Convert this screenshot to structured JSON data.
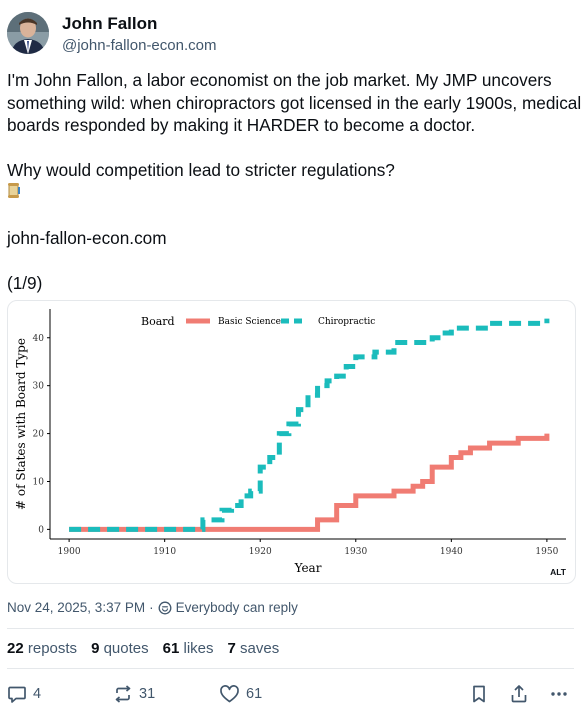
{
  "author": {
    "display_name": "John Fallon",
    "handle": "@john-fallon-econ.com",
    "avatar_icon": "avatar"
  },
  "post": {
    "paragraphs": [
      "I'm John Fallon, a labor economist on the job market. My JMP uncovers something wild: when chiropractors got licensed in the early 1900s, medical boards responded by making it HARDER to become a doctor.",
      "Why would competition lead to stricter regulations?"
    ],
    "thread_emoji": "scroll-icon",
    "link": "john-fallon-econ.com",
    "thread_counter": "(1/9)"
  },
  "image": {
    "alt_badge": "ALT",
    "chart_data": {
      "type": "line",
      "xlabel": "Year",
      "ylabel": "# of States with Board Type",
      "legend_title": "Board",
      "legend_position": "top-left",
      "xlim": [
        1898,
        1952
      ],
      "ylim": [
        -2,
        46
      ],
      "xticks": [
        1900,
        1910,
        1920,
        1930,
        1940,
        1950
      ],
      "yticks": [
        0,
        10,
        20,
        30,
        40
      ],
      "grid": false,
      "series": [
        {
          "name": "Basic Science",
          "color": "#f07c73",
          "style": "solid",
          "x": [
            1900,
            1901,
            1902,
            1903,
            1904,
            1905,
            1906,
            1907,
            1908,
            1909,
            1910,
            1911,
            1912,
            1913,
            1914,
            1915,
            1916,
            1917,
            1918,
            1919,
            1920,
            1921,
            1922,
            1923,
            1924,
            1925,
            1926,
            1927,
            1928,
            1929,
            1930,
            1931,
            1932,
            1933,
            1934,
            1935,
            1936,
            1937,
            1938,
            1939,
            1940,
            1941,
            1942,
            1943,
            1944,
            1945,
            1946,
            1947,
            1948,
            1949,
            1950
          ],
          "values": [
            0,
            0,
            0,
            0,
            0,
            0,
            0,
            0,
            0,
            0,
            0,
            0,
            0,
            0,
            0,
            0,
            0,
            0,
            0,
            0,
            0,
            0,
            0,
            0,
            0,
            0,
            2,
            2,
            5,
            5,
            7,
            7,
            7,
            7,
            8,
            8,
            9,
            10,
            13,
            13,
            15,
            16,
            17,
            17,
            18,
            18,
            18,
            19,
            19,
            19,
            20
          ]
        },
        {
          "name": "Chiropractic",
          "color": "#1bbcbc",
          "style": "dashed",
          "x": [
            1900,
            1901,
            1902,
            1903,
            1904,
            1905,
            1906,
            1907,
            1908,
            1909,
            1910,
            1911,
            1912,
            1913,
            1914,
            1915,
            1916,
            1917,
            1918,
            1919,
            1920,
            1921,
            1922,
            1923,
            1924,
            1925,
            1926,
            1927,
            1928,
            1929,
            1930,
            1931,
            1932,
            1933,
            1934,
            1935,
            1936,
            1937,
            1938,
            1939,
            1940,
            1941,
            1942,
            1943,
            1944,
            1945,
            1946,
            1947,
            1948,
            1949,
            1950
          ],
          "values": [
            0,
            0,
            0,
            0,
            0,
            0,
            0,
            0,
            0,
            0,
            0,
            0,
            0,
            0,
            2,
            2,
            4,
            5,
            7,
            8,
            13,
            15,
            20,
            22,
            25,
            28,
            30,
            31,
            32,
            34,
            36,
            36,
            37,
            37,
            39,
            39,
            39,
            39,
            40,
            41,
            42,
            42,
            42,
            42,
            43,
            43,
            43,
            43,
            43,
            43,
            44
          ]
        }
      ]
    }
  },
  "meta": {
    "timestamp": "Nov 24, 2025, 3:37 PM",
    "separator": "·",
    "reply_setting": "Everybody can reply"
  },
  "stats": {
    "reposts_count": "22",
    "reposts_label": "reposts",
    "quotes_count": "9",
    "quotes_label": "quotes",
    "likes_count": "61",
    "likes_label": "likes",
    "saves_count": "7",
    "saves_label": "saves"
  },
  "actions": {
    "reply_count": "4",
    "repost_count": "31",
    "like_count": "61"
  }
}
